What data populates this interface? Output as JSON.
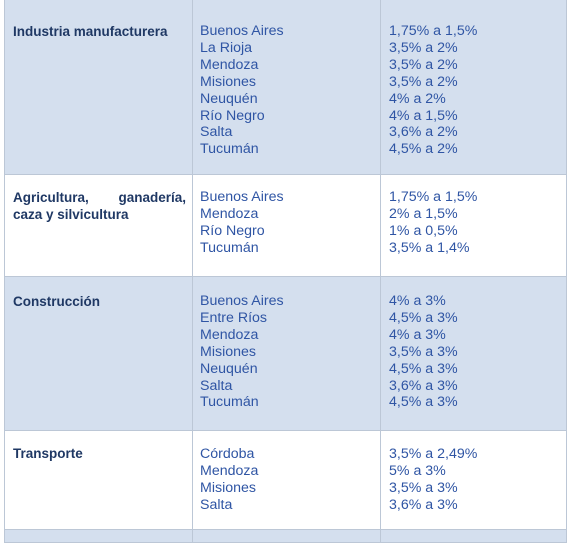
{
  "rows": [
    {
      "sector": "Industria manufacturera",
      "provinces": [
        "Buenos Aires",
        "La Rioja",
        "Mendoza",
        "Misiones",
        "Neuquén",
        "Río Negro",
        "Salta",
        "Tucumán"
      ],
      "rates": [
        "1,75% a 1,5%",
        "3,5% a 2%",
        "3,5% a 2%",
        "3,5% a 2%",
        "4% a 2%",
        "4% a 1,5%",
        "3,6% a 2%",
        "4,5% a 2%"
      ]
    },
    {
      "sector": "Agricultura, ganadería, caza y silvicultura",
      "provinces": [
        "Buenos Aires",
        "Mendoza",
        "Río Negro",
        "Tucumán"
      ],
      "rates": [
        "1,75% a 1,5%",
        "2% a 1,5%",
        "1% a 0,5%",
        "3,5% a 1,4%"
      ]
    },
    {
      "sector": "Construcción",
      "provinces": [
        "Buenos Aires",
        "Entre Ríos",
        "Mendoza",
        "Misiones",
        "Neuquén",
        "Salta",
        "Tucumán"
      ],
      "rates": [
        "4% a 3%",
        "4,5% a 3%",
        "4% a 3%",
        "3,5% a 3%",
        "4,5% a 3%",
        "3,6% a 3%",
        "4,5% a 3%"
      ]
    },
    {
      "sector": "Transporte",
      "provinces": [
        "Córdoba",
        "Mendoza",
        "Misiones",
        "Salta"
      ],
      "rates": [
        "3,5% a 2,49%",
        "5% a 3%",
        "3,5% a 3%",
        "3,6% a 3%"
      ]
    }
  ]
}
